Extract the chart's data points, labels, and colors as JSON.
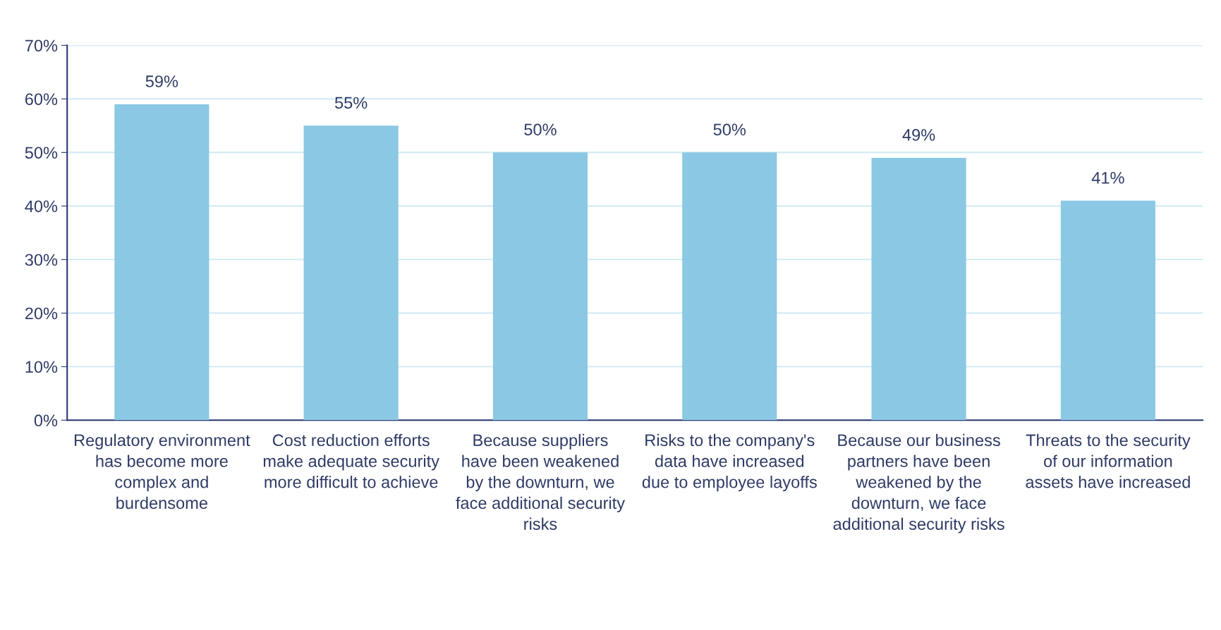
{
  "chart_data": {
    "type": "bar",
    "categories": [
      "Regulatory environment\nhas become more\ncomplex and\nburdensome",
      "Cost reduction efforts\nmake adequate security\nmore difficult to achieve",
      "Because suppliers\nhave been weakened\nby the downturn, we\nface additional security\nrisks",
      "Risks to the company's\ndata have increased\ndue to employee layoffs",
      "Because our business\npartners have been\nweakened by the\ndownturn, we face\nadditional security risks",
      "Threats to the security\nof our information\nassets have increased"
    ],
    "values": [
      59,
      55,
      50,
      50,
      49,
      41
    ],
    "value_labels": [
      "59%",
      "55%",
      "50%",
      "50%",
      "49%",
      "41%"
    ],
    "color": "#8bc8e4",
    "ylim": [
      0,
      70
    ],
    "yticks": [
      {
        "value": 0,
        "label": "0%"
      },
      {
        "value": 10,
        "label": "10%"
      },
      {
        "value": 20,
        "label": "20%"
      },
      {
        "value": 30,
        "label": "30%"
      },
      {
        "value": 40,
        "label": "40%"
      },
      {
        "value": 50,
        "label": "50%"
      },
      {
        "value": 60,
        "label": "60%"
      },
      {
        "value": 70,
        "label": "70%"
      }
    ],
    "grid": "y",
    "legend": false
  }
}
